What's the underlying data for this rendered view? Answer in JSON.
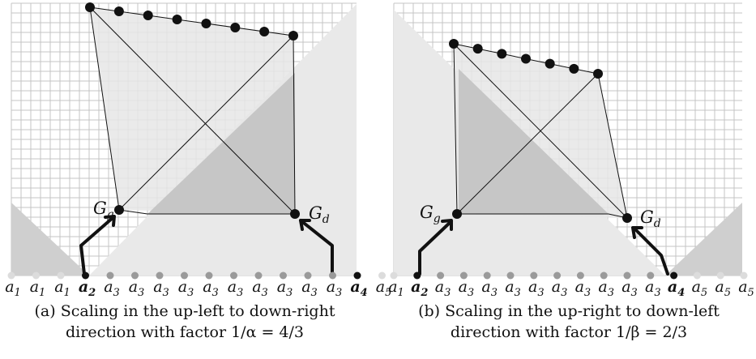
{
  "panels": [
    {
      "id": "a",
      "caption_line1": "(a) Scaling in the up-left to down-right",
      "caption_line2": "direction with factor 1/α = 4/3",
      "g_label": "G",
      "g_sub": "g",
      "d_label": "G",
      "d_sub": "d",
      "axis_labels": [
        {
          "base": "a",
          "sub": "1",
          "bold": false,
          "gray": true
        },
        {
          "base": "a",
          "sub": "1",
          "bold": false,
          "gray": true
        },
        {
          "base": "a",
          "sub": "1",
          "bold": false,
          "gray": true
        },
        {
          "base": "a",
          "sub": "2",
          "bold": true,
          "gray": false
        },
        {
          "base": "a",
          "sub": "3",
          "bold": false,
          "gray": true
        },
        {
          "base": "a",
          "sub": "3",
          "bold": false,
          "gray": true
        },
        {
          "base": "a",
          "sub": "3",
          "bold": false,
          "gray": true
        },
        {
          "base": "a",
          "sub": "3",
          "bold": false,
          "gray": true
        },
        {
          "base": "a",
          "sub": "3",
          "bold": false,
          "gray": true
        },
        {
          "base": "a",
          "sub": "3",
          "bold": false,
          "gray": true
        },
        {
          "base": "a",
          "sub": "3",
          "bold": false,
          "gray": true
        },
        {
          "base": "a",
          "sub": "3",
          "bold": false,
          "gray": true
        },
        {
          "base": "a",
          "sub": "3",
          "bold": false,
          "gray": true
        },
        {
          "base": "a",
          "sub": "3",
          "bold": false,
          "gray": true
        },
        {
          "base": "a",
          "sub": "4",
          "bold": true,
          "gray": false
        },
        {
          "base": "a",
          "sub": "5",
          "bold": false,
          "gray": true
        }
      ]
    },
    {
      "id": "b",
      "caption_line1": "(b) Scaling in the up-right to down-left",
      "caption_line2": "direction with factor 1/β = 2/3",
      "g_label": "G",
      "g_sub": "g",
      "d_label": "G",
      "d_sub": "d",
      "axis_labels": [
        {
          "base": "a",
          "sub": "1",
          "bold": false,
          "gray": true
        },
        {
          "base": "a",
          "sub": "2",
          "bold": true,
          "gray": false
        },
        {
          "base": "a",
          "sub": "3",
          "bold": false,
          "gray": true
        },
        {
          "base": "a",
          "sub": "3",
          "bold": false,
          "gray": true
        },
        {
          "base": "a",
          "sub": "3",
          "bold": false,
          "gray": true
        },
        {
          "base": "a",
          "sub": "3",
          "bold": false,
          "gray": true
        },
        {
          "base": "a",
          "sub": "3",
          "bold": false,
          "gray": true
        },
        {
          "base": "a",
          "sub": "3",
          "bold": false,
          "gray": true
        },
        {
          "base": "a",
          "sub": "3",
          "bold": false,
          "gray": true
        },
        {
          "base": "a",
          "sub": "3",
          "bold": false,
          "gray": true
        },
        {
          "base": "a",
          "sub": "3",
          "bold": false,
          "gray": true
        },
        {
          "base": "a",
          "sub": "3",
          "bold": false,
          "gray": true
        },
        {
          "base": "a",
          "sub": "4",
          "bold": true,
          "gray": false
        },
        {
          "base": "a",
          "sub": "5",
          "bold": false,
          "gray": true
        },
        {
          "base": "a",
          "sub": "5",
          "bold": false,
          "gray": true
        },
        {
          "base": "a",
          "sub": "5",
          "bold": false,
          "gray": true
        }
      ]
    }
  ],
  "colors": {
    "grid": "#c4c4c4",
    "light_fill": "#e9e9e9",
    "dark_fill": "#c6c6c6",
    "wedge": "#cfcfcf",
    "ink": "#111111",
    "gray_text": "#c4c4c4"
  }
}
